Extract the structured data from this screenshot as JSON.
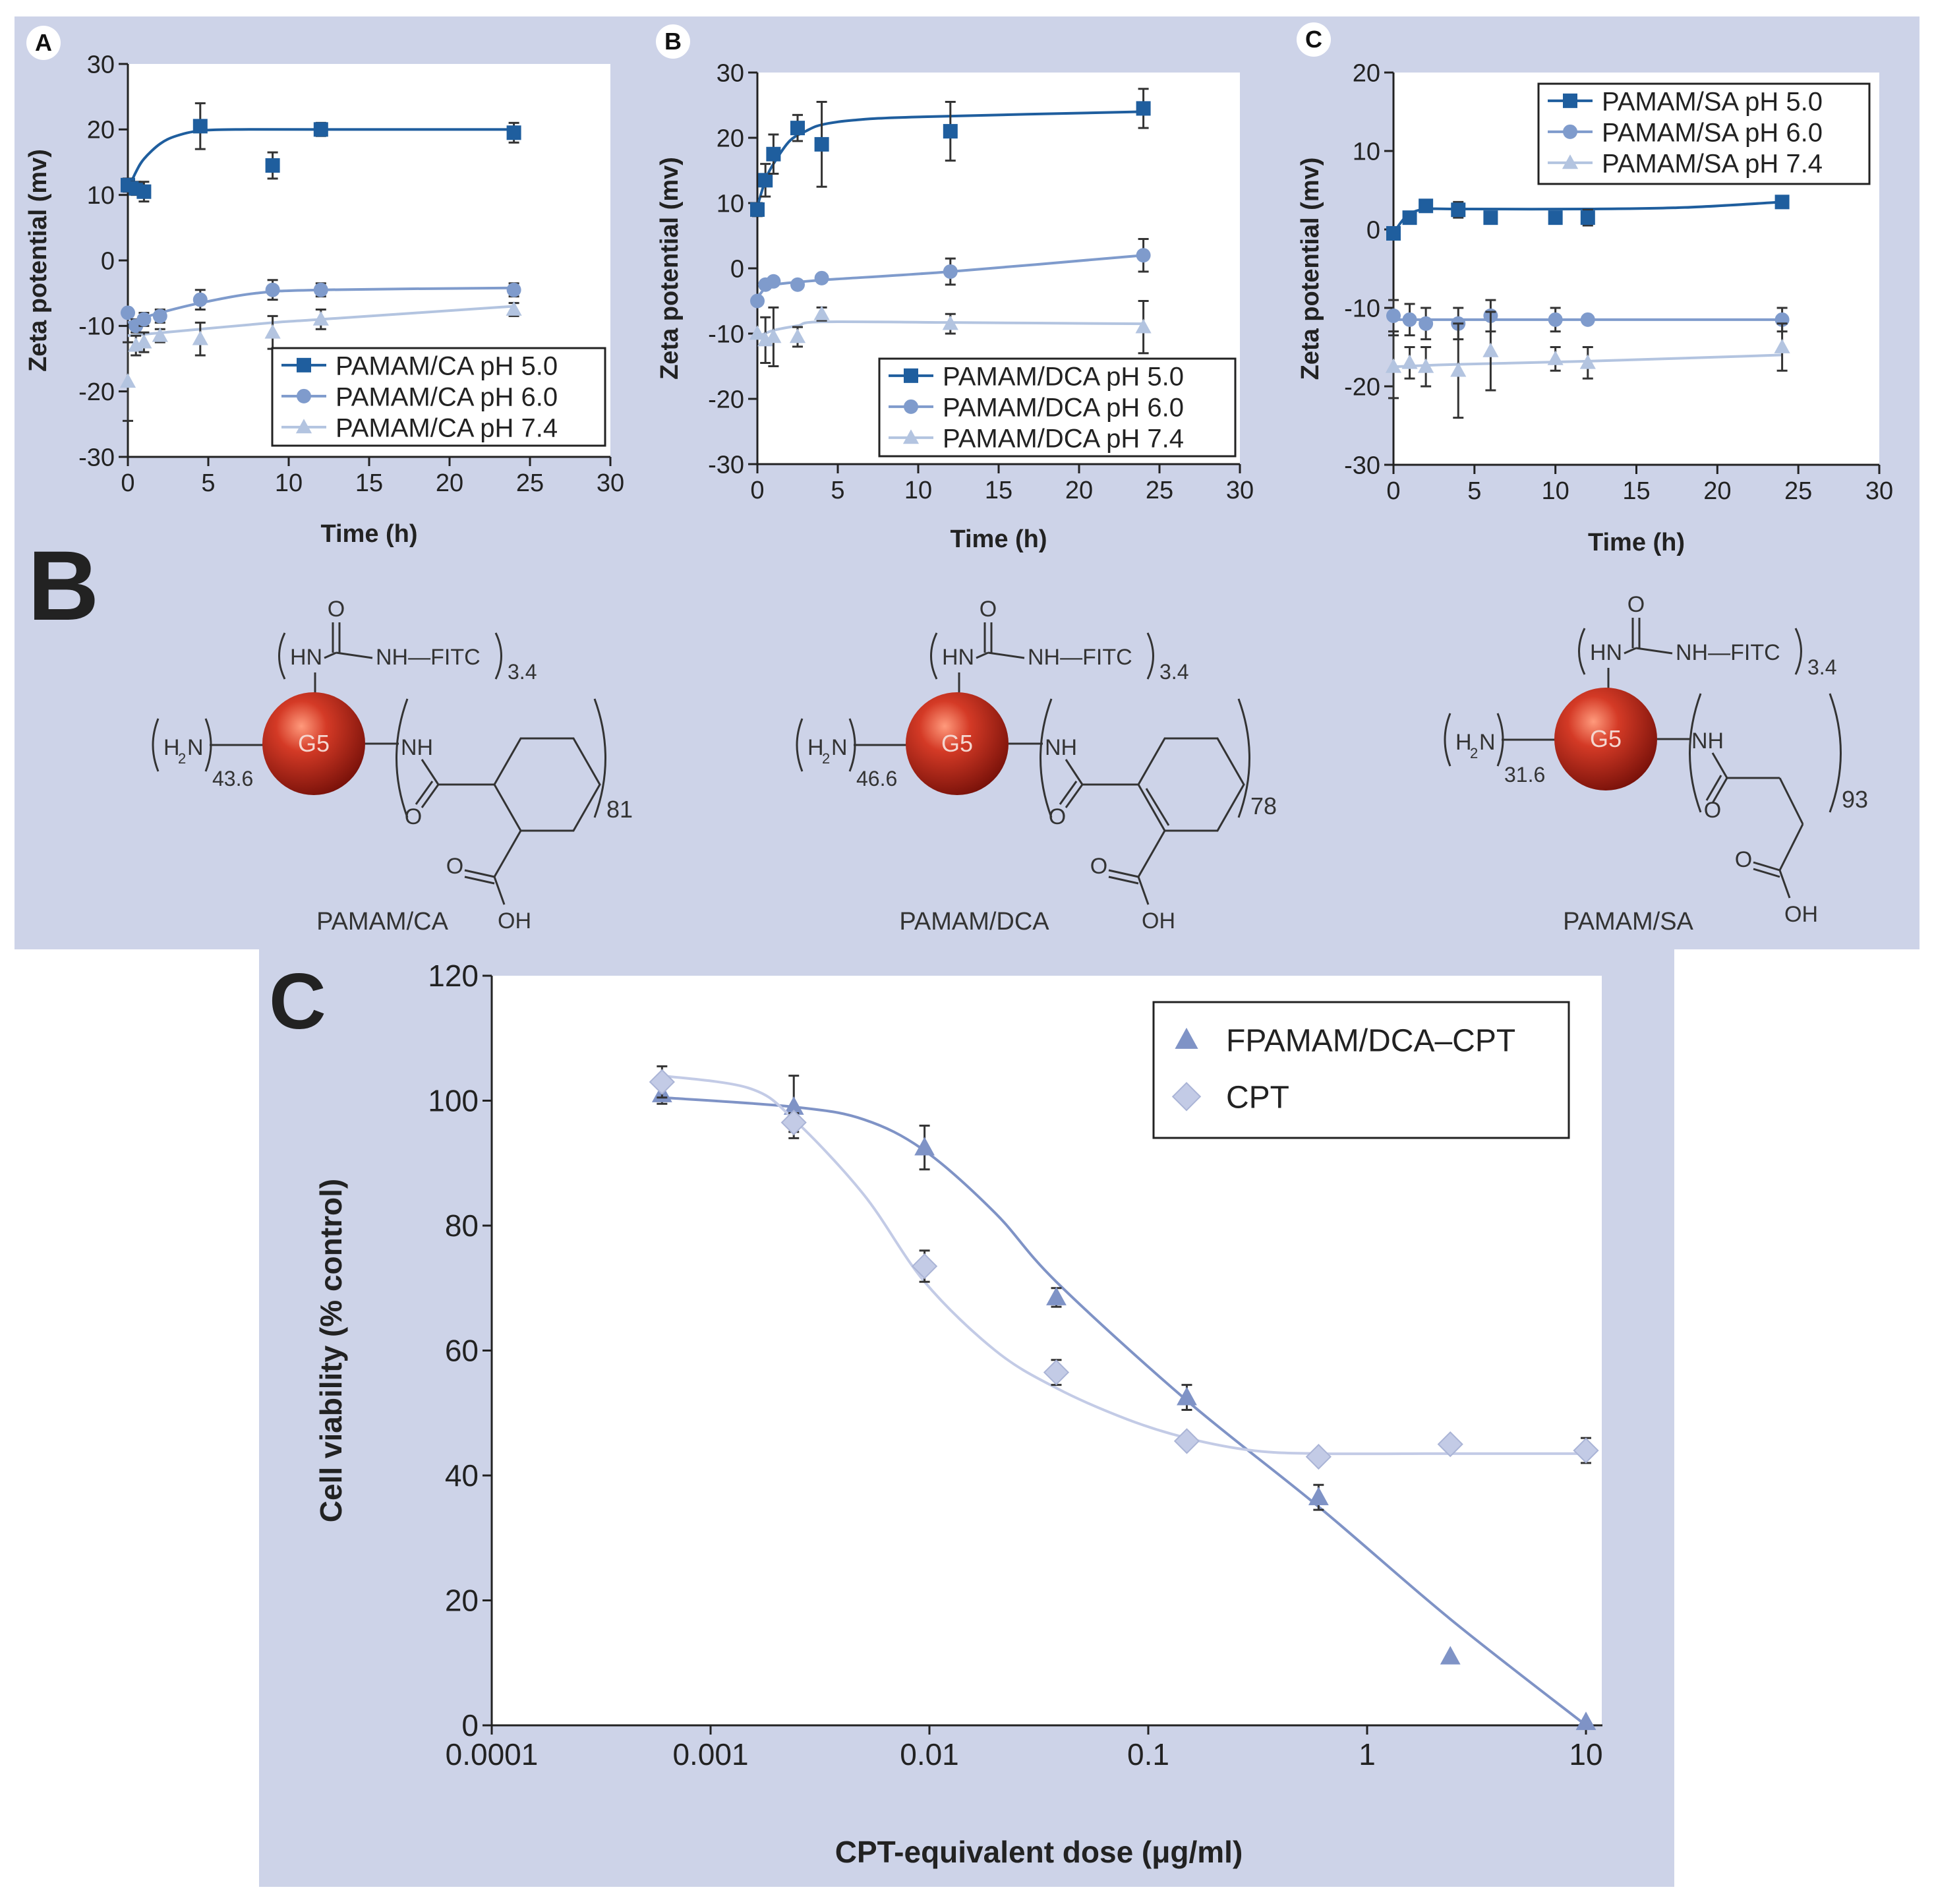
{
  "colors": {
    "panel_bg": "#cdd3e8",
    "plot_bg": "#ffffff",
    "series_dark": "#1f5e9e",
    "series_mid": "#7f9bcc",
    "series_light": "#b3c4e0",
    "fp_series": "#7f93c6",
    "cpt_series": "#c3cbe6",
    "sphere": "#c0281c"
  },
  "section_labels": {
    "top_B": "B",
    "bottom_C": "C"
  },
  "chart_data": [
    {
      "id": "zeta-CA",
      "type": "scatter",
      "panel_label": "A",
      "title": "",
      "xlabel": "Time (h)",
      "ylabel": "Zeta potential (mv)",
      "xlim": [
        0,
        30
      ],
      "ylim": [
        -30,
        30
      ],
      "xticks": [
        0,
        5,
        10,
        15,
        20,
        25,
        30
      ],
      "yticks": [
        30,
        20,
        10,
        0,
        -10,
        -20,
        -30
      ],
      "legend": "bottom-right",
      "series": [
        {
          "name": "PAMAM/CA pH 5.0",
          "marker": "square",
          "color_key": "series_dark",
          "x": [
            0,
            0.5,
            1,
            4.5,
            9,
            12,
            24
          ],
          "y": [
            11.5,
            11,
            10.5,
            20.5,
            14.5,
            20,
            19.5
          ],
          "err": [
            1,
            1,
            1.5,
            3.5,
            2,
            1,
            1.5
          ],
          "fit": [
            [
              0,
              10.8
            ],
            [
              0.5,
              13.5
            ],
            [
              1,
              15.5
            ],
            [
              2,
              17.8
            ],
            [
              3,
              19
            ],
            [
              4.5,
              19.8
            ],
            [
              7,
              20
            ],
            [
              12,
              20
            ],
            [
              24,
              20
            ]
          ]
        },
        {
          "name": "PAMAM/CA pH 6.0",
          "marker": "circle",
          "color_key": "series_mid",
          "x": [
            0,
            0.5,
            1,
            2,
            4.5,
            9,
            12,
            24
          ],
          "y": [
            -8,
            -10,
            -9,
            -8.5,
            -6,
            -4.5,
            -4.5,
            -4.5
          ],
          "err": [
            0,
            1,
            1,
            1,
            1.5,
            1.5,
            1,
            1
          ],
          "fit": [
            [
              0,
              -9.5
            ],
            [
              2,
              -8
            ],
            [
              4.5,
              -6.5
            ],
            [
              8,
              -5
            ],
            [
              12,
              -4.5
            ],
            [
              24,
              -4.2
            ]
          ]
        },
        {
          "name": "PAMAM/CA pH 7.4",
          "marker": "triangle",
          "color_key": "series_light",
          "x": [
            0,
            0.5,
            1,
            2,
            4.5,
            9,
            12,
            24
          ],
          "y": [
            -18.5,
            -13,
            -12.5,
            -11.5,
            -12,
            -11,
            -9,
            -7.5
          ],
          "err": [
            6,
            1.5,
            1.5,
            1,
            2.5,
            2.5,
            1.5,
            1
          ],
          "fit": [
            [
              0,
              -11.5
            ],
            [
              4.5,
              -10.5
            ],
            [
              9,
              -9.5
            ],
            [
              12,
              -9
            ],
            [
              24,
              -7
            ]
          ]
        }
      ]
    },
    {
      "id": "zeta-DCA",
      "type": "scatter",
      "panel_label": "B",
      "title": "",
      "xlabel": "Time (h)",
      "ylabel": "Zeta potential (mv)",
      "xlim": [
        0,
        30
      ],
      "ylim": [
        -30,
        30
      ],
      "xticks": [
        0,
        5,
        10,
        15,
        20,
        25,
        30
      ],
      "yticks": [
        30,
        20,
        10,
        0,
        -10,
        -20,
        -30
      ],
      "legend": "bottom-right",
      "series": [
        {
          "name": "PAMAM/DCA pH 5.0",
          "marker": "square",
          "color_key": "series_dark",
          "x": [
            0,
            0.5,
            1,
            2.5,
            4,
            12,
            24
          ],
          "y": [
            9,
            13.5,
            17.5,
            21.5,
            19,
            21,
            24.5
          ],
          "err": [
            1,
            2.5,
            3,
            2,
            6.5,
            4.5,
            3
          ],
          "fit": [
            [
              0,
              9.5
            ],
            [
              0.5,
              13.5
            ],
            [
              1,
              16
            ],
            [
              2,
              19.5
            ],
            [
              3,
              21
            ],
            [
              4,
              22
            ],
            [
              6,
              22.7
            ],
            [
              10,
              23.2
            ],
            [
              24,
              24
            ]
          ]
        },
        {
          "name": "PAMAM/DCA pH 6.0",
          "marker": "circle",
          "color_key": "series_mid",
          "x": [
            0,
            0.5,
            1,
            2.5,
            4,
            12,
            24
          ],
          "y": [
            -5,
            -2.5,
            -2,
            -2.5,
            -1.5,
            -0.5,
            2
          ],
          "err": [
            0,
            0.5,
            0.5,
            0.5,
            0.5,
            2,
            2.5
          ],
          "fit": [
            [
              0,
              -4.5
            ],
            [
              0.5,
              -3
            ],
            [
              1,
              -2.5
            ],
            [
              4,
              -1.8
            ],
            [
              12,
              -0.5
            ],
            [
              24,
              2
            ]
          ]
        },
        {
          "name": "PAMAM/DCA pH 7.4",
          "marker": "triangle",
          "color_key": "series_light",
          "x": [
            0,
            0.5,
            1,
            2.5,
            4,
            12,
            24
          ],
          "y": [
            -10,
            -11,
            -10.5,
            -10.5,
            -7,
            -8.5,
            -9
          ],
          "err": [
            0,
            3.5,
            4.5,
            1.5,
            1,
            1.5,
            4
          ],
          "fit": [
            [
              0,
              -10.5
            ],
            [
              1,
              -9.5
            ],
            [
              2.5,
              -8.8
            ],
            [
              4,
              -8.2
            ],
            [
              12,
              -8.3
            ],
            [
              24,
              -8.5
            ]
          ]
        }
      ]
    },
    {
      "id": "zeta-SA",
      "type": "scatter",
      "panel_label": "C",
      "title": "",
      "xlabel": "Time (h)",
      "ylabel": "Zeta potential (mv)",
      "xlim": [
        0,
        30
      ],
      "ylim": [
        -30,
        20
      ],
      "xticks": [
        0,
        5,
        10,
        15,
        20,
        25,
        30
      ],
      "yticks": [
        20,
        10,
        0,
        -10,
        -20,
        -30
      ],
      "legend": "top-right",
      "series": [
        {
          "name": "PAMAM/SA pH 5.0",
          "marker": "square",
          "color_key": "series_dark",
          "x": [
            0,
            1,
            2,
            4,
            6,
            10,
            12,
            24
          ],
          "y": [
            -0.5,
            1.5,
            3,
            2.5,
            1.5,
            1.5,
            1.5,
            3.5
          ],
          "err": [
            0.5,
            0.5,
            0.5,
            1,
            0.5,
            0.5,
            1,
            0.5
          ],
          "fit": [
            [
              0,
              -0.5
            ],
            [
              0.5,
              1
            ],
            [
              1,
              2
            ],
            [
              2,
              2.6
            ],
            [
              4,
              2.6
            ],
            [
              12,
              2.6
            ],
            [
              18,
              2.8
            ],
            [
              24,
              3.5
            ]
          ]
        },
        {
          "name": "PAMAM/SA pH 6.0",
          "marker": "circle",
          "color_key": "series_mid",
          "x": [
            0,
            1,
            2,
            4,
            6,
            10,
            12,
            24
          ],
          "y": [
            -11,
            -11.5,
            -12,
            -12,
            -11,
            -11.5,
            -11.5,
            -11.5
          ],
          "err": [
            2,
            2,
            2,
            2,
            2,
            1.5,
            0,
            1.5
          ],
          "fit": [
            [
              0,
              -11.5
            ],
            [
              6,
              -11.5
            ],
            [
              12,
              -11.5
            ],
            [
              24,
              -11.5
            ]
          ]
        },
        {
          "name": "PAMAM/SA pH 7.4",
          "marker": "triangle",
          "color_key": "series_light",
          "x": [
            0,
            1,
            2,
            4,
            6,
            10,
            12,
            24
          ],
          "y": [
            -17.5,
            -17,
            -17.5,
            -18,
            -15.5,
            -16.5,
            -17,
            -15
          ],
          "err": [
            4,
            2,
            2.5,
            6,
            5,
            1.5,
            2,
            3
          ],
          "fit": [
            [
              0,
              -17.5
            ],
            [
              4,
              -17.2
            ],
            [
              12,
              -16.8
            ],
            [
              24,
              -16
            ]
          ]
        }
      ]
    },
    {
      "id": "viability",
      "type": "scatter",
      "panel_label": "",
      "title": "",
      "xlabel": "CPT-equivalent dose (μg/ml)",
      "ylabel": "Cell viability (% control)",
      "xscale": "log",
      "xlim": [
        0.0001,
        10
      ],
      "ylim": [
        0,
        120
      ],
      "xticks": [
        0.0001,
        0.001,
        0.01,
        0.1,
        1,
        10
      ],
      "xticklabels": [
        "0.0001",
        "0.001",
        "0.01",
        "0.1",
        "1",
        "10"
      ],
      "yticks": [
        120,
        100,
        80,
        60,
        40,
        20,
        0
      ],
      "legend": "top-right",
      "series": [
        {
          "name": "FPAMAM/DCA–CPT",
          "marker": "triangle",
          "color_key": "fp_series",
          "x": [
            0.0006,
            0.0024,
            0.0095,
            0.038,
            0.15,
            0.6,
            2.4,
            10
          ],
          "y": [
            101,
            99,
            92.5,
            68.5,
            52.5,
            36.5,
            11,
            0.5
          ],
          "err": [
            1.5,
            5,
            3.5,
            1.5,
            2,
            2,
            0,
            0
          ],
          "fit": [
            [
              0.0006,
              100.5
            ],
            [
              0.0024,
              99
            ],
            [
              0.005,
              97
            ],
            [
              0.0095,
              92
            ],
            [
              0.02,
              82
            ],
            [
              0.038,
              71
            ],
            [
              0.15,
              52
            ],
            [
              0.6,
              35
            ],
            [
              2.4,
              17
            ],
            [
              10,
              0
            ]
          ]
        },
        {
          "name": "CPT",
          "marker": "diamond",
          "color_key": "cpt_series",
          "x": [
            0.0006,
            0.0024,
            0.0095,
            0.038,
            0.15,
            0.6,
            2.4,
            10
          ],
          "y": [
            103,
            96.5,
            73.5,
            56.5,
            45.5,
            43,
            45,
            44
          ],
          "err": [
            2.5,
            1.5,
            2.5,
            2,
            0,
            0,
            0,
            2
          ],
          "fit": [
            [
              0.0006,
              104
            ],
            [
              0.0015,
              102
            ],
            [
              0.0024,
              97
            ],
            [
              0.005,
              85
            ],
            [
              0.0095,
              71
            ],
            [
              0.02,
              60
            ],
            [
              0.038,
              54
            ],
            [
              0.08,
              49
            ],
            [
              0.15,
              46
            ],
            [
              0.3,
              44
            ],
            [
              0.6,
              43.5
            ],
            [
              2.4,
              43.5
            ],
            [
              10,
              43.5
            ]
          ]
        }
      ]
    }
  ],
  "structures": [
    {
      "name": "PAMAM/CA",
      "core": "G5",
      "amine_sub": "2",
      "amine_count": "43.6",
      "fitc_count": "3.4",
      "acid_count": "81",
      "fitc_label": "NH—FITC",
      "hn": "HN",
      "o": "O",
      "nh": "NH",
      "oh": "OH",
      "h": "H",
      "n": "N"
    },
    {
      "name": "PAMAM/DCA",
      "core": "G5",
      "amine_sub": "2",
      "amine_count": "46.6",
      "fitc_count": "3.4",
      "acid_count": "78",
      "fitc_label": "NH—FITC",
      "hn": "HN",
      "o": "O",
      "nh": "NH",
      "oh": "OH",
      "h": "H",
      "n": "N"
    },
    {
      "name": "PAMAM/SA",
      "core": "G5",
      "amine_sub": "2",
      "amine_count": "31.6",
      "fitc_count": "3.4",
      "acid_count": "93",
      "fitc_label": "NH—FITC",
      "hn": "HN",
      "o": "O",
      "nh": "NH",
      "oh": "OH",
      "h": "H",
      "n": "N"
    }
  ]
}
